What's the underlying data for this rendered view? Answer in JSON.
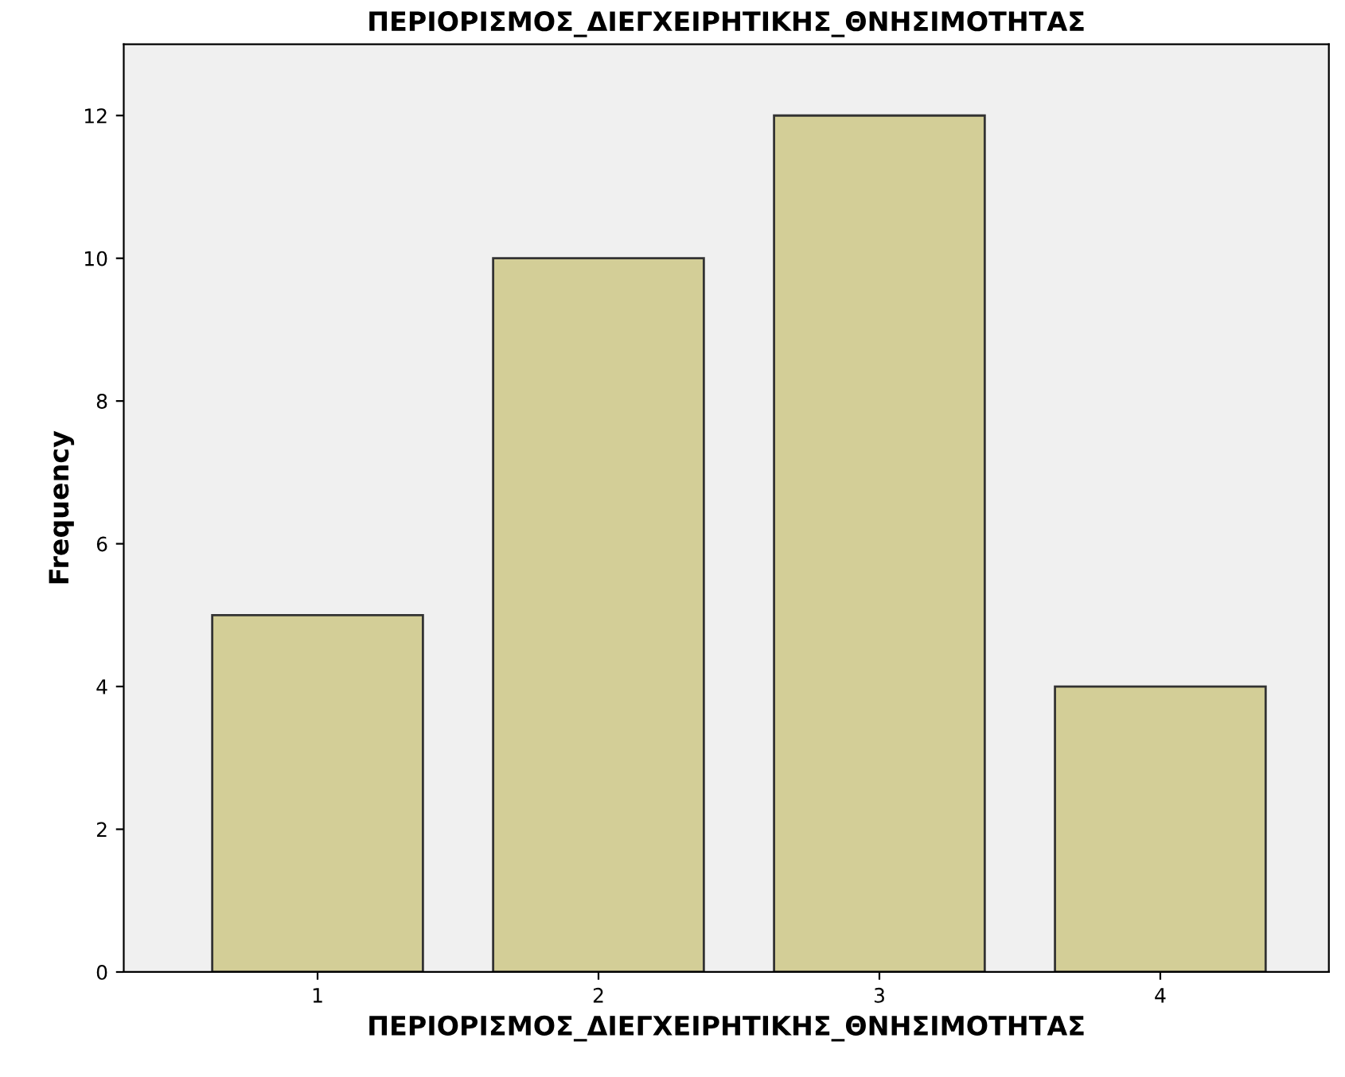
{
  "chart_data": {
    "type": "bar",
    "title": "ΠΕΡΙΟΡΙΣΜΟΣ_ΔΙΕΓΧΕΙΡΗΤΙΚΗΣ_ΘΝΗΣΙΜΟΤΗΤΑΣ",
    "xlabel": "ΠΕΡΙΟΡΙΣΜΟΣ_ΔΙΕΓΧΕΙΡΗΤΙΚΗΣ_ΘΝΗΣΙΜΟΤΗΤΑΣ",
    "ylabel": "Frequency",
    "categories": [
      "1",
      "2",
      "3",
      "4"
    ],
    "values": [
      5,
      10,
      12,
      4
    ],
    "color": "#d3ce97",
    "ylim": [
      0,
      13
    ],
    "yticks": [
      0,
      2,
      4,
      6,
      8,
      10,
      12
    ],
    "grid": false
  }
}
